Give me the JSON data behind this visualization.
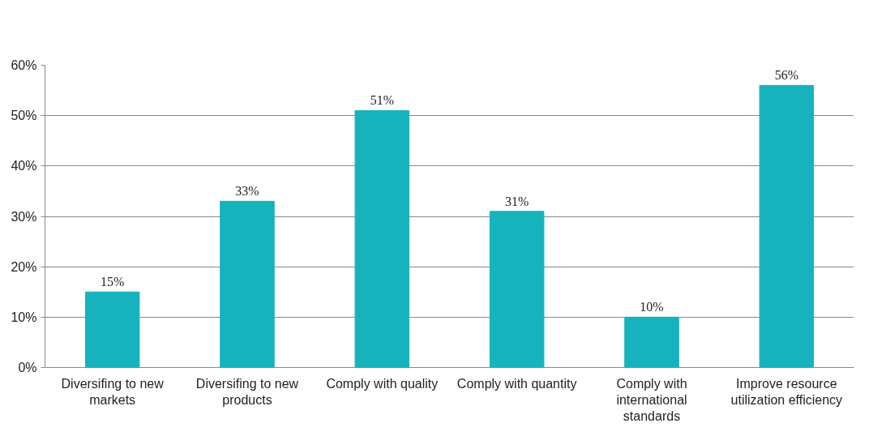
{
  "chart_data": {
    "type": "bar",
    "categories": [
      "Diversifing to new markets",
      "Diversifing to new products",
      "Comply with quality",
      "Comply with quantity",
      "Comply with international standards",
      "Improve resource utilization efficiency"
    ],
    "values": [
      15,
      33,
      51,
      31,
      10,
      56
    ],
    "value_labels": [
      "15%",
      "33%",
      "51%",
      "31%",
      "10%",
      "56%"
    ],
    "color": "#17b3bc",
    "ylim": [
      0,
      60
    ],
    "yticks": [
      {
        "value": 0,
        "label": "0%"
      },
      {
        "value": 10,
        "label": "10%"
      },
      {
        "value": 20,
        "label": "20%"
      },
      {
        "value": 30,
        "label": "30%"
      },
      {
        "value": 40,
        "label": "40%"
      },
      {
        "value": 50,
        "label": "50%"
      },
      {
        "value": 60,
        "label": "60%"
      }
    ],
    "grid": "y"
  }
}
